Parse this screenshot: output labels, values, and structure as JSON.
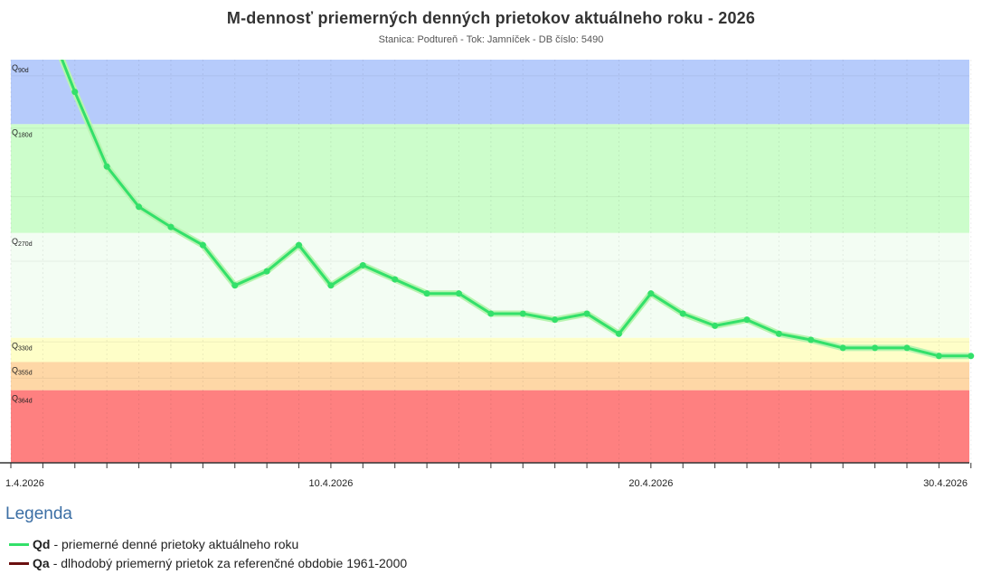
{
  "header": {
    "title": "M-dennosť priemerných denných prietokov aktuálneho roku - 2026",
    "subtitle": "Stanica: Podtureň - Tok: Jamníček - DB číslo: 5490"
  },
  "colors": {
    "q90": "#b6cbfb",
    "q180": "#ccfdcb",
    "q270": "#f3fdf3",
    "q330": "#fefec8",
    "q355": "#fed7a6",
    "q364": "#fe8080",
    "series_line": "#33e06a",
    "series_glow": "#b8f4b0",
    "qa_line": "#6b0f0f"
  },
  "chart_data": {
    "type": "line",
    "title": "M-dennosť priemerných denných prietokov aktuálneho roku - 2026",
    "xlabel": "",
    "ylabel": "",
    "xlim": [
      1,
      30.95
    ],
    "ylim": [
      0,
      100
    ],
    "x_ticks": [
      "1.4.2026",
      "10.4.2026",
      "20.4.2026",
      "30.4.2026"
    ],
    "x_tick_values": [
      1,
      11,
      21,
      31
    ],
    "bands": [
      {
        "label": "Q",
        "sub": "90d",
        "from": 84,
        "to": 100,
        "color": "#b6cbfb"
      },
      {
        "label": "Q",
        "sub": "180d",
        "from": 57,
        "to": 84,
        "color": "#ccfdcb"
      },
      {
        "label": "Q",
        "sub": "270d",
        "from": 31,
        "to": 57,
        "color": "#f3fdf3"
      },
      {
        "label": "Q",
        "sub": "330d",
        "from": 25,
        "to": 31,
        "color": "#fefec8"
      },
      {
        "label": "Q",
        "sub": "355d",
        "from": 18,
        "to": 25,
        "color": "#fed7a6"
      },
      {
        "label": "Q",
        "sub": "364d",
        "from": 0,
        "to": 18,
        "color": "#fe8080"
      }
    ],
    "series": [
      {
        "name": "Qd",
        "x": [
          2.5,
          3,
          4,
          5,
          6,
          7,
          8,
          9,
          10,
          11,
          12,
          13,
          14,
          15,
          16,
          17,
          18,
          19,
          20,
          21,
          22,
          23,
          24,
          25,
          26,
          27,
          28,
          29,
          30,
          31
        ],
        "values": [
          102,
          92,
          73.5,
          63.5,
          58.5,
          54,
          44,
          47.5,
          54,
          44,
          49,
          45.5,
          42,
          42,
          37,
          37,
          35.5,
          37,
          32,
          42,
          37,
          34,
          35.5,
          32,
          30.5,
          28.5,
          28.5,
          28.5,
          26.5,
          26.5
        ]
      }
    ]
  },
  "legend": {
    "title": "Legenda",
    "items": [
      {
        "key": "Qd",
        "text": "- priemerné denné prietoky aktuálneho roku"
      },
      {
        "key": "Qa",
        "text": "- dlhodobý priemerný prietok za referenčné obdobie 1961-2000"
      }
    ]
  }
}
